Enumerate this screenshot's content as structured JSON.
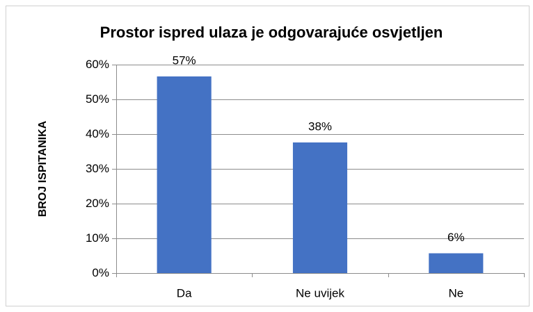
{
  "chart_data": {
    "type": "bar",
    "title": "Prostor ispred ulaza je odgovarajuće osvjetljen",
    "y_label": "BROJ ISPITANIKA",
    "categories": [
      "Da",
      "Ne uvijek",
      "Ne"
    ],
    "values": [
      56.6,
      37.6,
      5.7
    ],
    "value_labels": [
      "57%",
      "38%",
      "6%"
    ],
    "color": "#4472c4",
    "ylim": [
      0,
      60
    ],
    "yticks": [
      {
        "value": 0,
        "label": "0%"
      },
      {
        "value": 10,
        "label": "10%"
      },
      {
        "value": 20,
        "label": "20%"
      },
      {
        "value": 30,
        "label": "30%"
      },
      {
        "value": 40,
        "label": "40%"
      },
      {
        "value": 50,
        "label": "50%"
      },
      {
        "value": 60,
        "label": "60%"
      }
    ],
    "grid": true
  }
}
